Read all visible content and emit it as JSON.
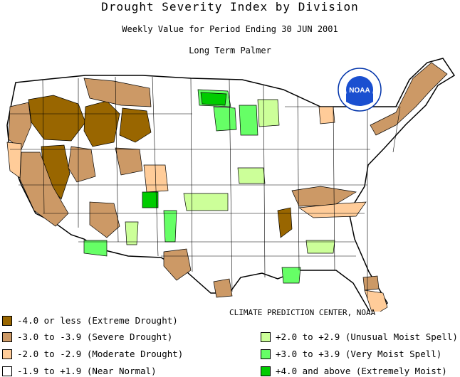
{
  "title": "Drought Severity Index by Division",
  "subtitle": "Weekly Value for Period Ending 30 JUN 2001",
  "index_name": "Long Term Palmer",
  "logo_text": "NOAA",
  "credit": "CLIMATE PREDICTION CENTER, NOAA",
  "colors": {
    "extreme_drought": "#996600",
    "severe_drought": "#cc9966",
    "moderate_drought": "#ffcc99",
    "near_normal": "#ffffff",
    "unusual_moist": "#ccff99",
    "very_moist": "#66ff66",
    "extremely_moist": "#00cc00"
  },
  "legend": {
    "extreme_drought": "-4.0 or less (Extreme Drought)",
    "severe_drought": "-3.0 to -3.9 (Severe Drought)",
    "moderate_drought": "-2.0 to -2.9 (Moderate Drought)",
    "near_normal": "-1.9 to +1.9 (Near Normal)",
    "unusual_moist": "+2.0 to +2.9 (Unusual Moist Spell)",
    "very_moist": "+3.0 to +3.9 (Very Moist Spell)",
    "extremely_moist": "+4.0 and above (Extremely Moist)"
  }
}
